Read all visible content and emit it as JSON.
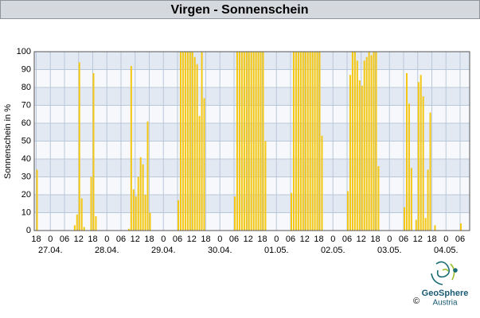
{
  "chart_data": {
    "type": "bar",
    "title": "Virgen - Sonnenschein",
    "y_label": "Sonnenschein in %",
    "color": "#f4c712",
    "grid": true,
    "ylim": [
      0,
      100
    ],
    "yticks": [
      0,
      10,
      20,
      30,
      40,
      50,
      60,
      70,
      80,
      90,
      100
    ],
    "categories": [
      "18",
      null,
      null,
      null,
      null,
      null,
      "0",
      null,
      null,
      null,
      null,
      null,
      "06",
      null,
      null,
      null,
      null,
      null,
      "12",
      null,
      null,
      null,
      null,
      null,
      "18",
      null,
      null,
      null,
      null,
      null,
      "0",
      null,
      null,
      null,
      null,
      null,
      "06",
      null,
      null,
      null,
      null,
      null,
      "12",
      null,
      null,
      null,
      null,
      null,
      "18",
      null,
      null,
      null,
      null,
      null,
      "0",
      null,
      null,
      null,
      null,
      null,
      "06",
      null,
      null,
      null,
      null,
      null,
      "12",
      null,
      null,
      null,
      null,
      null,
      "18",
      null,
      null,
      null,
      null,
      null,
      "0",
      null,
      null,
      null,
      null,
      null,
      "06",
      null,
      null,
      null,
      null,
      null,
      "12",
      null,
      null,
      null,
      null,
      null,
      "18",
      null,
      null,
      null,
      null,
      null,
      "0",
      null,
      null,
      null,
      null,
      null,
      "06",
      null,
      null,
      null,
      null,
      null,
      "12",
      null,
      null,
      null,
      null,
      null,
      "18",
      null,
      null,
      null,
      null,
      null,
      "0",
      null,
      null,
      null,
      null,
      null,
      "06",
      null,
      null,
      null,
      null,
      null,
      "12",
      null,
      null,
      null,
      null,
      null,
      "18",
      null,
      null,
      null,
      null,
      null,
      "0",
      null,
      null,
      null,
      null,
      null,
      "06",
      null,
      null,
      null,
      null,
      null,
      "12",
      null,
      null,
      null,
      null,
      null,
      "18",
      null,
      null,
      null,
      null,
      null,
      "0",
      null,
      null,
      null,
      null,
      null,
      "06"
    ],
    "values": [
      34,
      0,
      0,
      0,
      0,
      0,
      0,
      0,
      0,
      0,
      0,
      0,
      0,
      0,
      0,
      0,
      3,
      9,
      94,
      18,
      2,
      0,
      0,
      30,
      88,
      8,
      0,
      0,
      0,
      0,
      0,
      0,
      0,
      0,
      0,
      0,
      0,
      0,
      0,
      1,
      92,
      23,
      19,
      30,
      41,
      37,
      20,
      61,
      10,
      0,
      0,
      0,
      0,
      0,
      0,
      0,
      0,
      0,
      0,
      0,
      17,
      100,
      100,
      100,
      100,
      100,
      100,
      97,
      93,
      64,
      100,
      74,
      0,
      0,
      0,
      0,
      0,
      0,
      0,
      0,
      0,
      0,
      0,
      0,
      19,
      100,
      100,
      100,
      100,
      100,
      100,
      100,
      100,
      100,
      100,
      100,
      100,
      50,
      0,
      0,
      0,
      0,
      0,
      0,
      0,
      0,
      0,
      0,
      21,
      100,
      100,
      100,
      100,
      100,
      100,
      100,
      100,
      100,
      100,
      100,
      100,
      53,
      0,
      0,
      0,
      0,
      0,
      0,
      0,
      0,
      0,
      0,
      22,
      87,
      100,
      100,
      95,
      84,
      81,
      95,
      97,
      100,
      98,
      100,
      100,
      36,
      0,
      0,
      0,
      0,
      0,
      0,
      0,
      0,
      0,
      0,
      13,
      88,
      71,
      35,
      0,
      6,
      83,
      87,
      75,
      7,
      34,
      66,
      0,
      3,
      0,
      0,
      0,
      0,
      0,
      0,
      0,
      0,
      0,
      0,
      4
    ],
    "date_labels": [
      "27.04.",
      "28.04.",
      "29.04.",
      "30.04.",
      "01.05.",
      "02.05.",
      "03.05.",
      "04.05."
    ],
    "logo_text": "GeoSphere",
    "logo_subtext": "Austria",
    "copyright": "©"
  }
}
